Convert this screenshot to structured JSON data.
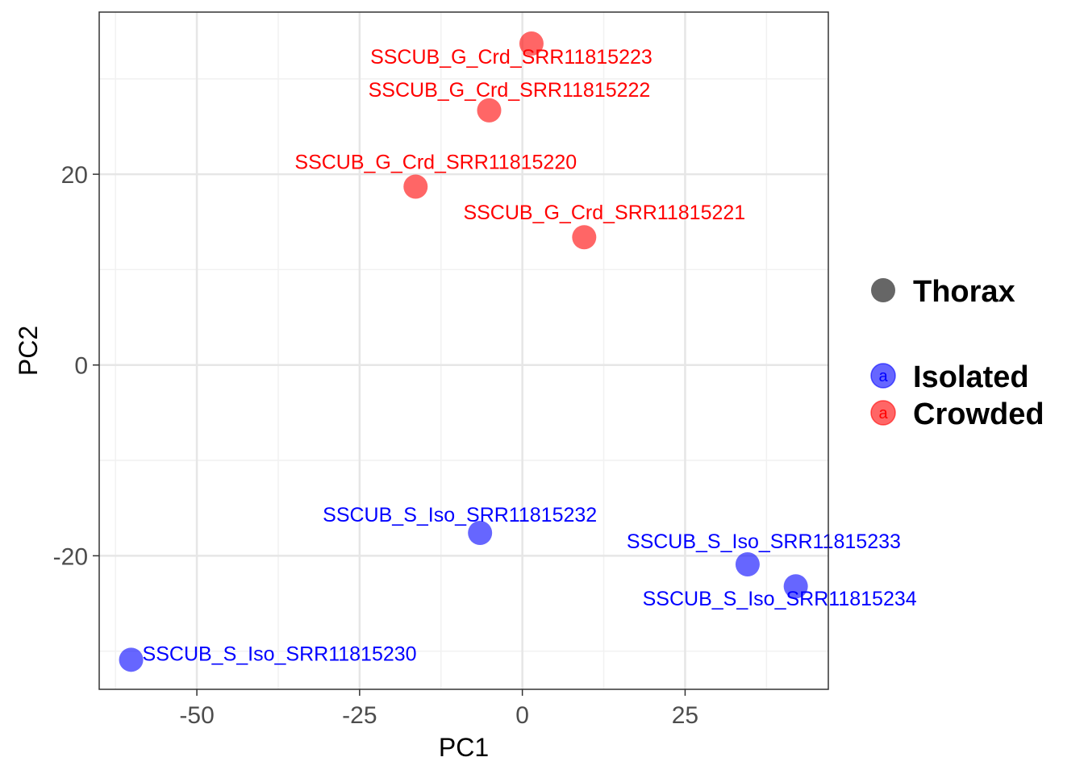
{
  "chart_data": {
    "type": "scatter",
    "xlabel": "PC1",
    "ylabel": "PC2",
    "xlim": [
      -65,
      47
    ],
    "ylim": [
      -34,
      37
    ],
    "x_ticks": [
      -50,
      -25,
      0,
      25
    ],
    "x_tick_labels": [
      "-50",
      "-25",
      "0",
      "25"
    ],
    "y_ticks": [
      -20,
      0,
      20
    ],
    "y_tick_labels": [
      "-20",
      "0",
      "20"
    ],
    "grid": true,
    "legend_position": "right",
    "legend": {
      "shape_title": "Thorax",
      "shape_color": "#666666",
      "glyph": "a",
      "groups": [
        {
          "name": "Isolated",
          "color": "#0000ff"
        },
        {
          "name": "Crowded",
          "color": "#ff0000"
        }
      ]
    },
    "series": [
      {
        "name": "Isolated",
        "color": "#0000ff",
        "points": [
          {
            "x": -6.5,
            "y": -17.6,
            "label": "SSCUB_S_Iso_SRR11815232"
          },
          {
            "x": 34.6,
            "y": -20.9,
            "label": "SSCUB_S_Iso_SRR11815233"
          },
          {
            "x": 42.0,
            "y": -23.2,
            "label": "SSCUB_S_Iso_SRR11815234"
          },
          {
            "x": -60.1,
            "y": -30.9,
            "label": "SSCUB_S_Iso_SRR11815230"
          }
        ]
      },
      {
        "name": "Crowded",
        "color": "#ff0000",
        "points": [
          {
            "x": 1.4,
            "y": 33.7,
            "label": "SSCUB_G_Crd_SRR11815223"
          },
          {
            "x": -5.1,
            "y": 26.7,
            "label": "SSCUB_G_Crd_SRR11815222"
          },
          {
            "x": -16.4,
            "y": 18.7,
            "label": "SSCUB_G_Crd_SRR11815220"
          },
          {
            "x": 9.5,
            "y": 13.4,
            "label": "SSCUB_G_Crd_SRR11815221"
          }
        ]
      }
    ]
  }
}
